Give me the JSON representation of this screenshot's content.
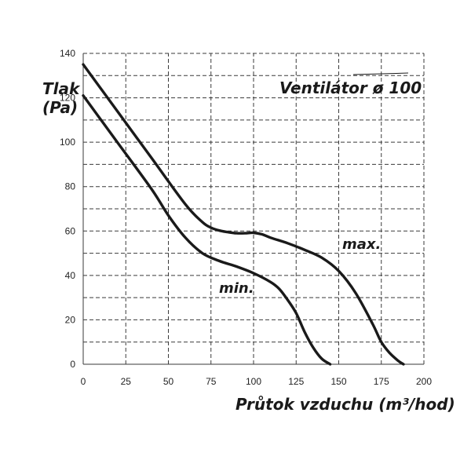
{
  "chart_data": {
    "type": "line",
    "title": "Ventilátor ø 100",
    "xlabel": "Průtok vzduchu (m³/hod)",
    "ylabel": "Tlak\n(Pa)",
    "xlim": [
      0,
      200
    ],
    "ylim": [
      0,
      140
    ],
    "xticks": [
      0,
      25,
      50,
      75,
      100,
      125,
      150,
      175,
      200
    ],
    "yticks": [
      0,
      20,
      40,
      60,
      80,
      100,
      120,
      140
    ],
    "grid": true,
    "series": [
      {
        "name": "max.",
        "x": [
          0,
          20,
          40,
          60,
          70,
          75,
          80,
          85,
          90,
          95,
          100,
          105,
          110,
          120,
          130,
          140,
          150,
          160,
          170,
          175,
          180,
          185,
          188
        ],
        "y": [
          135,
          114,
          93,
          72,
          64,
          61.5,
          60.2,
          59.5,
          59,
          59,
          59.2,
          58.5,
          57,
          54.5,
          51.5,
          48,
          42,
          32,
          18,
          10,
          5,
          1.5,
          0
        ]
      },
      {
        "name": "min.",
        "x": [
          0,
          20,
          40,
          50,
          60,
          70,
          80,
          90,
          100,
          110,
          115,
          120,
          125,
          130,
          135,
          140,
          145
        ],
        "y": [
          121,
          100,
          79,
          67,
          57,
          50,
          46.5,
          44,
          41,
          37,
          34,
          29,
          23,
          14.5,
          7.5,
          2.5,
          0
        ]
      }
    ]
  }
}
